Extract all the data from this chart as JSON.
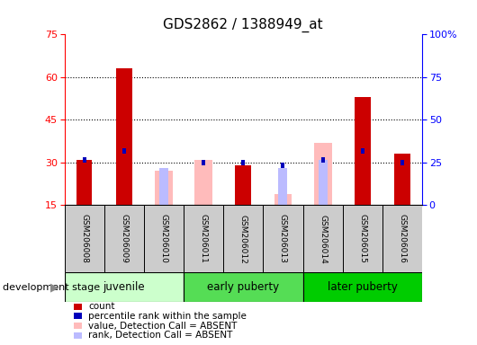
{
  "title": "GDS2862 / 1388949_at",
  "samples": [
    "GSM206008",
    "GSM206009",
    "GSM206010",
    "GSM206011",
    "GSM206012",
    "GSM206013",
    "GSM206014",
    "GSM206015",
    "GSM206016"
  ],
  "count": [
    31,
    63,
    null,
    null,
    29,
    null,
    null,
    53,
    33
  ],
  "percentile_rank": [
    31,
    34,
    null,
    30,
    30,
    29,
    31,
    34,
    30
  ],
  "absent_value": [
    null,
    null,
    27,
    31,
    null,
    19,
    37,
    null,
    null
  ],
  "absent_rank": [
    null,
    null,
    28,
    null,
    null,
    28,
    31,
    null,
    null
  ],
  "ylim_left": [
    15,
    75
  ],
  "ylim_right": [
    0,
    100
  ],
  "yticks_left": [
    15,
    30,
    45,
    60,
    75
  ],
  "yticks_right": [
    0,
    25,
    50,
    75,
    100
  ],
  "ytick_labels_right": [
    "0",
    "25",
    "50",
    "75",
    "100%"
  ],
  "color_count": "#cc0000",
  "color_percentile": "#0000bb",
  "color_absent_value": "#ffbbbb",
  "color_absent_rank": "#bbbbff",
  "bg_xticklabels": "#cccccc",
  "bg_groups_juvenile": "#ccffcc",
  "bg_groups_early": "#55dd55",
  "bg_groups_later": "#00cc00",
  "group_defs": [
    {
      "label": "juvenile",
      "start": 0,
      "end": 2
    },
    {
      "label": "early puberty",
      "start": 3,
      "end": 5
    },
    {
      "label": "later puberty",
      "start": 6,
      "end": 8
    }
  ],
  "legend_items": [
    {
      "color": "#cc0000",
      "label": "count"
    },
    {
      "color": "#0000bb",
      "label": "percentile rank within the sample"
    },
    {
      "color": "#ffbbbb",
      "label": "value, Detection Call = ABSENT"
    },
    {
      "color": "#bbbbff",
      "label": "rank, Detection Call = ABSENT"
    }
  ],
  "stage_label": "development stage"
}
